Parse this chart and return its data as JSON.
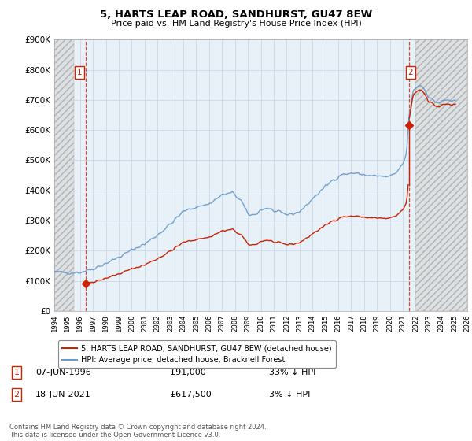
{
  "title": "5, HARTS LEAP ROAD, SANDHURST, GU47 8EW",
  "subtitle": "Price paid vs. HM Land Registry's House Price Index (HPI)",
  "ylim": [
    0,
    900000
  ],
  "yticks": [
    0,
    100000,
    200000,
    300000,
    400000,
    500000,
    600000,
    700000,
    800000,
    900000
  ],
  "ytick_labels": [
    "£0",
    "£100K",
    "£200K",
    "£300K",
    "£400K",
    "£500K",
    "£600K",
    "£700K",
    "£800K",
    "£900K"
  ],
  "hpi_color": "#6699cc",
  "price_color": "#cc2200",
  "sale1_date_x": 1996.44,
  "sale1_price": 91000,
  "sale2_date_x": 2021.46,
  "sale2_price": 617500,
  "legend_label_price": "5, HARTS LEAP ROAD, SANDHURST, GU47 8EW (detached house)",
  "legend_label_hpi": "HPI: Average price, detached house, Bracknell Forest",
  "footer": "Contains HM Land Registry data © Crown copyright and database right 2024.\nThis data is licensed under the Open Government Licence v3.0.",
  "table_row1": [
    "1",
    "07-JUN-1996",
    "£91,000",
    "33% ↓ HPI"
  ],
  "table_row2": [
    "2",
    "18-JUN-2021",
    "£617,500",
    "3% ↓ HPI"
  ],
  "xmin": 1994,
  "xmax": 2026,
  "left_hatch_end": 1995.5,
  "right_hatch_start": 2022.0,
  "grid_color": "#c8d8e8",
  "bg_color": "#e8f0f8"
}
